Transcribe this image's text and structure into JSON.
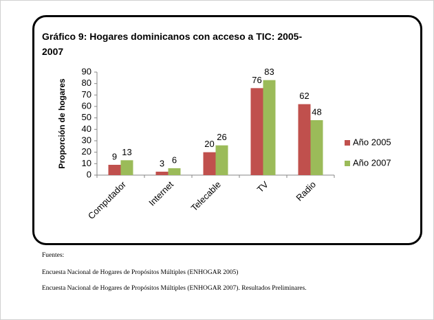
{
  "chart_data": {
    "type": "bar",
    "title": "Gráfico 9: Hogares dominicanos con acceso a TIC: 2005-2007",
    "ylabel": "Proporción de hogares",
    "categories": [
      "Computador",
      "Internet",
      "Telecable",
      "TV",
      "Radio"
    ],
    "series": [
      {
        "name": "Año 2005",
        "color": "#c0504d",
        "values": [
          9,
          3,
          20,
          76,
          62
        ]
      },
      {
        "name": "Año 2007",
        "color": "#9bbb59",
        "values": [
          13,
          6,
          26,
          83,
          48
        ]
      }
    ],
    "ylim": [
      0,
      90
    ],
    "yticks": [
      0,
      10,
      20,
      30,
      40,
      50,
      60,
      70,
      80,
      90
    ],
    "legend": "right",
    "grid": false
  },
  "sources": {
    "heading": "Fuentes:",
    "lines": [
      "Encuesta Nacional de Hogares de Propósitos Múltiples (ENHOGAR 2005)",
      "Encuesta Nacional de Hogares de Propósitos Múltiples (ENHOGAR 2007). Resultados Preliminares."
    ]
  }
}
